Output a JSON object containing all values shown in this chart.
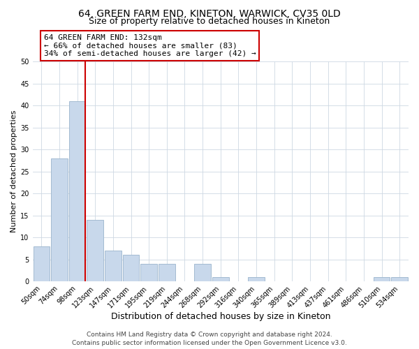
{
  "title": "64, GREEN FARM END, KINETON, WARWICK, CV35 0LD",
  "subtitle": "Size of property relative to detached houses in Kineton",
  "xlabel": "Distribution of detached houses by size in Kineton",
  "ylabel": "Number of detached properties",
  "bar_labels": [
    "50sqm",
    "74sqm",
    "98sqm",
    "123sqm",
    "147sqm",
    "171sqm",
    "195sqm",
    "219sqm",
    "244sqm",
    "268sqm",
    "292sqm",
    "316sqm",
    "340sqm",
    "365sqm",
    "389sqm",
    "413sqm",
    "437sqm",
    "461sqm",
    "486sqm",
    "510sqm",
    "534sqm"
  ],
  "bar_values": [
    8,
    28,
    41,
    14,
    7,
    6,
    4,
    4,
    0,
    4,
    1,
    0,
    1,
    0,
    0,
    0,
    0,
    0,
    0,
    1,
    1
  ],
  "bar_color": "#c8d8eb",
  "bar_edge_color": "#9ab4cc",
  "vline_x_index": 2,
  "vline_color": "#cc0000",
  "annotation_text": "64 GREEN FARM END: 132sqm\n← 66% of detached houses are smaller (83)\n34% of semi-detached houses are larger (42) →",
  "annotation_box_color": "#ffffff",
  "annotation_box_edge": "#cc0000",
  "ylim": [
    0,
    50
  ],
  "yticks": [
    0,
    5,
    10,
    15,
    20,
    25,
    30,
    35,
    40,
    45,
    50
  ],
  "footer_line1": "Contains HM Land Registry data © Crown copyright and database right 2024.",
  "footer_line2": "Contains public sector information licensed under the Open Government Licence v3.0.",
  "title_fontsize": 10,
  "subtitle_fontsize": 9,
  "xlabel_fontsize": 9,
  "ylabel_fontsize": 8,
  "tick_fontsize": 7,
  "annotation_fontsize": 8,
  "footer_fontsize": 6.5
}
